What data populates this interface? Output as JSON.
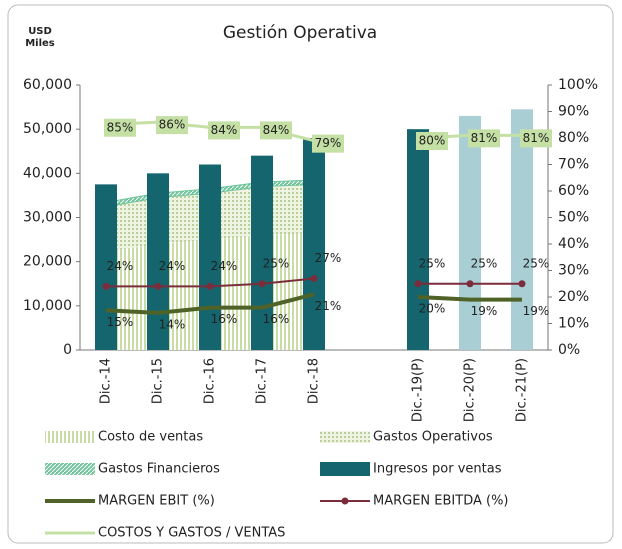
{
  "chart_data": {
    "type": "combo",
    "title": "Gestión Operativa",
    "y_label": [
      "USD",
      "Miles"
    ],
    "categories": [
      "Dic.-14",
      "Dic.-15",
      "Dic.-16",
      "Dic.-17",
      "Dic.-18",
      null,
      "Dic.-19(P)",
      "Dic.-20(P)",
      "Dic.-21(P)"
    ],
    "ylim": [
      0,
      60000
    ],
    "yticks": [
      0,
      {
        "value": 10000,
        "label": "10,000"
      },
      {
        "value": 20000,
        "label": "20,000"
      },
      {
        "value": 30000,
        "label": "30,000"
      },
      {
        "value": 40000,
        "label": "40,000"
      },
      {
        "value": 50000,
        "label": "50,000"
      },
      {
        "value": 60000,
        "label": "60,000"
      }
    ],
    "y2lim": [
      0,
      100
    ],
    "y2ticks": [
      {
        "value": 0,
        "label": "0%"
      },
      {
        "value": 10,
        "label": "10%"
      },
      {
        "value": 20,
        "label": "20%"
      },
      {
        "value": 30,
        "label": "30%"
      },
      {
        "value": 40,
        "label": "40%"
      },
      {
        "value": 50,
        "label": "50%"
      },
      {
        "value": 60,
        "label": "60%"
      },
      {
        "value": 70,
        "label": "70%"
      },
      {
        "value": 80,
        "label": "80%"
      },
      {
        "value": 90,
        "label": "90%"
      },
      {
        "value": 100,
        "label": "100%"
      }
    ],
    "series": [
      {
        "name": "Costo de ventas",
        "type": "area",
        "pattern": "vstripes",
        "color": "#c9dca6",
        "values": [
          22000,
          24000,
          25000,
          26000,
          26500,
          null,
          null,
          null,
          null
        ]
      },
      {
        "name": "Gastos Operativos",
        "type": "area",
        "pattern": "dots",
        "color": "#b8cf9a",
        "values": [
          10000,
          10500,
          10500,
          11000,
          11000,
          null,
          null,
          null,
          null
        ]
      },
      {
        "name": "Gastos Financieros",
        "type": "area",
        "pattern": "hatch",
        "color": "#6fc49a",
        "values": [
          1000,
          1000,
          1000,
          1000,
          1000,
          null,
          null,
          null,
          null
        ]
      },
      {
        "name": "Ingresos por ventas",
        "type": "bar",
        "color": "#14656e",
        "colors": [
          "#14656e",
          "#14656e",
          "#14656e",
          "#14656e",
          "#14656e",
          null,
          "#14656e",
          "#a9cfd5",
          "#a9cfd5"
        ],
        "values": [
          37500,
          40000,
          42000,
          44000,
          48000,
          null,
          50000,
          53000,
          54500
        ]
      },
      {
        "name": "MARGEN EBIT (%)",
        "type": "line",
        "axis": "y2",
        "color": "#4f6228",
        "width": 4,
        "label_pos": "below",
        "values": [
          15,
          14,
          16,
          16,
          21,
          null,
          20,
          19,
          19
        ],
        "value_labels": [
          "15%",
          "14%",
          "16%",
          "16%",
          "21%",
          null,
          "20%",
          "19%",
          "19%"
        ]
      },
      {
        "name": "MARGEN EBITDA (%)",
        "type": "line",
        "axis": "y2",
        "color": "#7b2c3a",
        "width": 2,
        "marker": true,
        "label_pos": "above",
        "values": [
          24,
          24,
          24,
          25,
          27,
          null,
          25,
          25,
          25
        ],
        "value_labels": [
          "24%",
          "24%",
          "24%",
          "25%",
          "27%",
          null,
          "25%",
          "25%",
          "25%"
        ]
      },
      {
        "name": "COSTOS Y GASTOS / VENTAS",
        "type": "line",
        "axis": "y2",
        "color": "#c5e0a5",
        "width": 3,
        "label_pos": "on",
        "values": [
          85,
          86,
          84,
          84,
          79,
          null,
          80,
          81,
          81
        ],
        "value_labels": [
          "85%",
          "86%",
          "84%",
          "84%",
          "79%",
          null,
          "80%",
          "81%",
          "81%"
        ]
      }
    ]
  }
}
